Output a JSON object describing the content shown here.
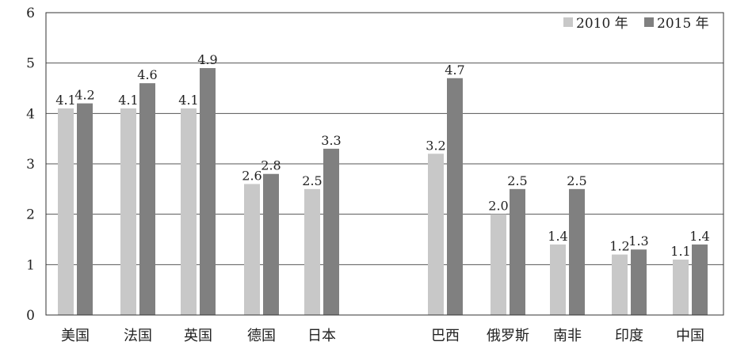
{
  "chart_data": {
    "type": "bar",
    "title": "",
    "xlabel": "",
    "ylabel": "",
    "ylim": [
      0,
      6
    ],
    "yticks": [
      0,
      1,
      2,
      3,
      4,
      5,
      6
    ],
    "grid": true,
    "legend_position": "top-right",
    "categories": [
      "美国",
      "法国",
      "英国",
      "德国",
      "日本",
      "巴西",
      "俄罗斯",
      "南非",
      "印度",
      "中国"
    ],
    "series": [
      {
        "name": "2010 年",
        "color": "#c8c8c8",
        "values": [
          4.1,
          4.1,
          4.1,
          2.6,
          2.5,
          3.2,
          2.0,
          1.4,
          1.2,
          1.1
        ],
        "labels": [
          "4.1",
          "4.1",
          "4.1",
          "2.6",
          "2.5",
          "3.2",
          "2.0",
          "1.4",
          "1.2",
          "1.1"
        ]
      },
      {
        "name": "2015 年",
        "color": "#808080",
        "values": [
          4.2,
          4.6,
          4.9,
          2.8,
          3.3,
          4.7,
          2.5,
          2.5,
          1.3,
          1.4
        ],
        "labels": [
          "4.2",
          "4.6",
          "4.9",
          "2.8",
          "3.3",
          "4.7",
          "2.5",
          "2.5",
          "1.3",
          "1.4"
        ]
      }
    ]
  }
}
